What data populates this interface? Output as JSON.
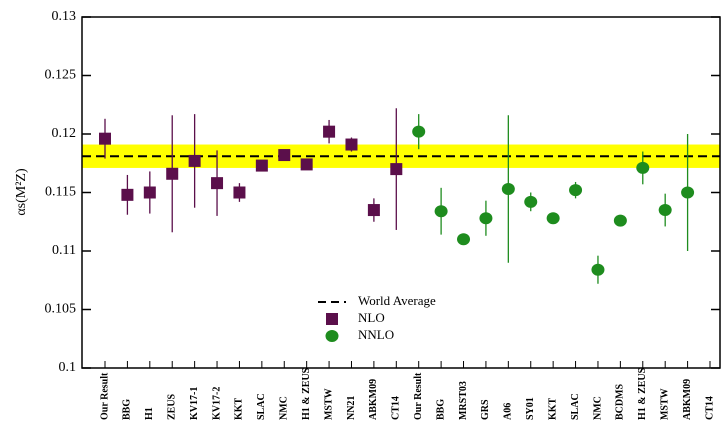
{
  "chart_data": {
    "type": "errorbar",
    "y_label": "αs(M²Z)",
    "categories": [
      "Our Result",
      "BBG",
      "H1",
      "ZEUS",
      "KV17-1",
      "KV17-2",
      "KKT",
      "SLAC",
      "NMC",
      "H1 & ZEUS",
      "MSTW",
      "NN21",
      "ABKM09",
      "CT14",
      "Our Result",
      "BBG",
      "MRST03",
      "GRS",
      "A06",
      "SY01",
      "KKT",
      "SLAC",
      "NMC",
      "BCDMS",
      "H1 & ZEUS",
      "MSTW",
      "ABKM09",
      "CT14"
    ],
    "series": [
      {
        "name": "NLO",
        "color": "#5b0f4b",
        "marker": "square",
        "values": [
          0.1196,
          0.1148,
          0.115,
          0.1166,
          0.1177,
          0.1158,
          0.115,
          0.1173,
          0.1182,
          0.1174,
          0.1202,
          0.1191,
          0.1135,
          0.117,
          null,
          null,
          null,
          null,
          null,
          null,
          null,
          null,
          null,
          null,
          null,
          null,
          null,
          null
        ],
        "errors": [
          0.0017,
          0.0017,
          0.0018,
          0.005,
          0.004,
          0.0028,
          0.0008,
          0.0003,
          0.0004,
          0.0003,
          0.001,
          0.0006,
          0.001,
          0.0052,
          null,
          null,
          null,
          null,
          null,
          null,
          null,
          null,
          null,
          null,
          null,
          null,
          null,
          null
        ]
      },
      {
        "name": "NNLO",
        "color": "#1e8c1e",
        "marker": "circle",
        "values": [
          null,
          null,
          null,
          null,
          null,
          null,
          null,
          null,
          null,
          null,
          null,
          null,
          null,
          null,
          0.1202,
          0.1134,
          0.111,
          0.1128,
          0.1153,
          0.1142,
          0.1128,
          0.1152,
          0.1084,
          0.1126,
          0.1171,
          0.1135,
          0.115,
          null
        ],
        "errors": [
          null,
          null,
          null,
          null,
          null,
          null,
          null,
          null,
          null,
          null,
          null,
          null,
          null,
          null,
          0.0015,
          0.002,
          0.0003,
          0.0015,
          0.0063,
          0.0008,
          0.0003,
          0.0007,
          0.0012,
          0.0002,
          0.0014,
          0.0014,
          0.005,
          null
        ]
      }
    ],
    "world_average": {
      "name": "World Average",
      "value": 0.1181,
      "band": [
        0.1171,
        0.1191
      ],
      "band_color": "#ffff00"
    },
    "ylim": [
      0.1,
      0.13
    ],
    "yticks": [
      0.1,
      0.105,
      0.11,
      0.115,
      0.12,
      0.125,
      0.13
    ],
    "legend": "center-bottom"
  }
}
